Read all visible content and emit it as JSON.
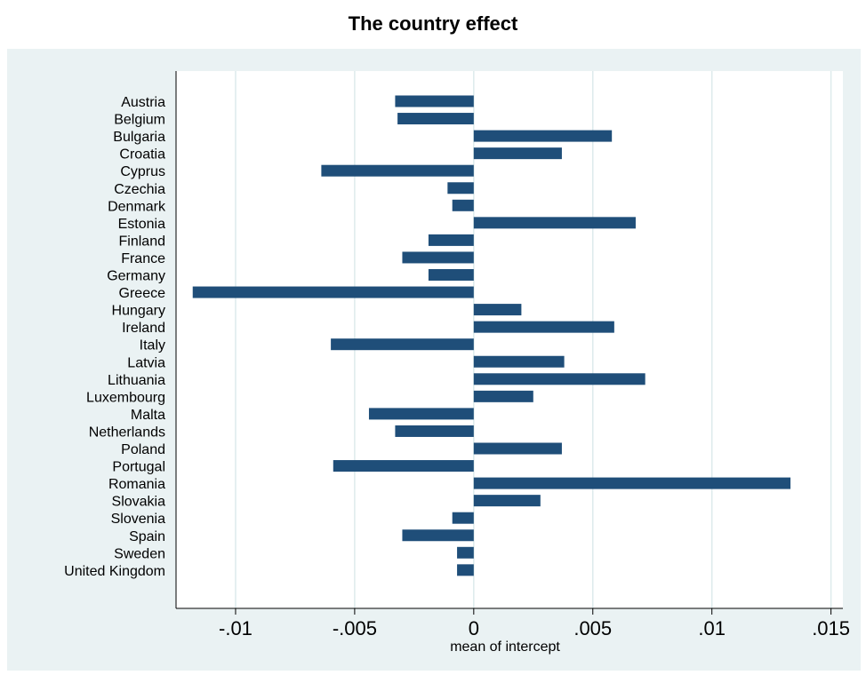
{
  "chart_data": {
    "type": "bar",
    "orientation": "horizontal",
    "title": "The country effect",
    "xlabel": "mean of intercept",
    "ylabel": "",
    "xlim": [
      -0.0125,
      0.0155
    ],
    "xticks": [
      -0.01,
      -0.005,
      0,
      0.005,
      0.01,
      0.015
    ],
    "xtick_labels": [
      "-.01",
      "-.005",
      "0",
      ".005",
      ".01",
      ".015"
    ],
    "grid": true,
    "legend": "none",
    "colors": {
      "bar": "#1f4e79",
      "background": "#eaf2f3",
      "plot_area": "#ffffff",
      "grid": "#ddeaec"
    },
    "categories": [
      "Austria",
      "Belgium",
      "Bulgaria",
      "Croatia",
      "Cyprus",
      "Czechia",
      "Denmark",
      "Estonia",
      "Finland",
      "France",
      "Germany",
      "Greece",
      "Hungary",
      "Ireland",
      "Italy",
      "Latvia",
      "Lithuania",
      "Luxembourg",
      "Malta",
      "Netherlands",
      "Poland",
      "Portugal",
      "Romania",
      "Slovakia",
      "Slovenia",
      "Spain",
      "Sweden",
      "United Kingdom"
    ],
    "values": [
      -0.0033,
      -0.0032,
      0.0058,
      0.0037,
      -0.0064,
      -0.0011,
      -0.0009,
      0.0068,
      -0.0019,
      -0.003,
      -0.0019,
      -0.0118,
      0.002,
      0.0059,
      -0.006,
      0.0038,
      0.0072,
      0.0025,
      -0.0044,
      -0.0033,
      0.0037,
      -0.0059,
      0.0133,
      0.0028,
      -0.0009,
      -0.003,
      -0.0007,
      -0.0007
    ]
  }
}
